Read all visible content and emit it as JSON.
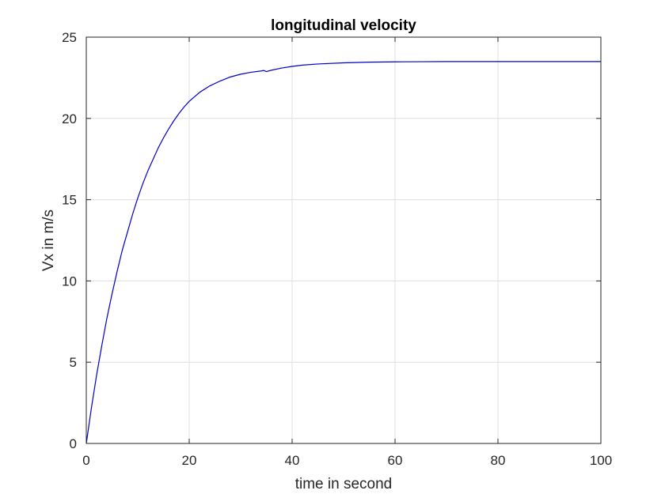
{
  "chart_data": {
    "type": "line",
    "title": "longitudinal velocity",
    "xlabel": "time in second",
    "ylabel": "Vx in m/s",
    "xlim": [
      0,
      100
    ],
    "ylim": [
      0,
      25
    ],
    "xticks": [
      0,
      20,
      40,
      60,
      80,
      100
    ],
    "yticks": [
      0,
      5,
      10,
      15,
      20,
      25
    ],
    "xtick_labels": [
      "0",
      "20",
      "40",
      "60",
      "80",
      "100"
    ],
    "ytick_labels": [
      "0",
      "5",
      "10",
      "15",
      "20",
      "25"
    ],
    "grid": true,
    "series": [
      {
        "color": "#0000cc",
        "x": [
          0,
          1,
          2,
          3,
          4,
          5,
          6,
          7,
          8,
          9,
          10,
          11,
          12,
          13,
          14,
          15,
          16,
          17,
          18,
          19,
          20,
          22,
          24,
          26,
          28,
          30,
          32,
          34,
          34.5,
          35,
          36,
          38,
          40,
          42,
          45,
          50,
          55,
          60,
          65,
          70,
          75,
          80,
          85,
          90,
          95,
          100
        ],
        "y": [
          0,
          2.2,
          4.2,
          6.0,
          7.7,
          9.2,
          10.6,
          11.9,
          13.0,
          14.1,
          15.1,
          16.0,
          16.8,
          17.5,
          18.2,
          18.8,
          19.35,
          19.85,
          20.3,
          20.7,
          21.05,
          21.6,
          22.0,
          22.3,
          22.55,
          22.72,
          22.84,
          22.92,
          22.95,
          22.88,
          22.97,
          23.1,
          23.2,
          23.28,
          23.35,
          23.42,
          23.46,
          23.48,
          23.49,
          23.5,
          23.5,
          23.5,
          23.5,
          23.5,
          23.5,
          23.5
        ]
      }
    ]
  },
  "colors": {
    "axis": "#262626",
    "grid": "#dfdfdf",
    "line": "#0000cc"
  }
}
